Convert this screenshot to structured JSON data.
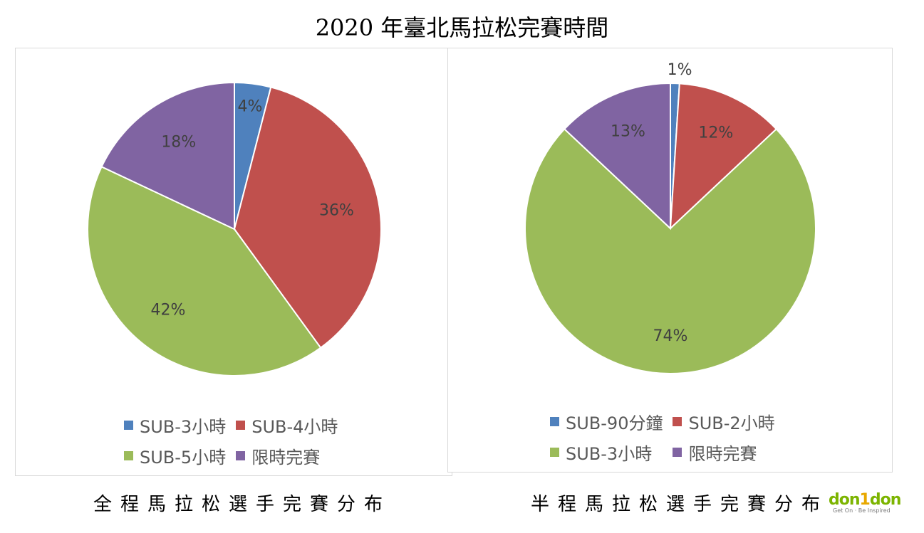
{
  "title": "2020 年臺北馬拉松完賽時間",
  "colors": {
    "blue": "#4f81bd",
    "red": "#c0504d",
    "green": "#9bbb59",
    "purple": "#8064a2"
  },
  "chart_data": [
    {
      "type": "pie",
      "caption": "全程馬拉松選手完賽分布",
      "categories": [
        "SUB-3小時",
        "SUB-4小時",
        "SUB-5小時",
        "限時完賽"
      ],
      "values": [
        4,
        36,
        42,
        18
      ],
      "labels": [
        "4%",
        "36%",
        "42%",
        "18%"
      ],
      "colors": [
        "#4f81bd",
        "#c0504d",
        "#9bbb59",
        "#8064a2"
      ],
      "legend_position": "bottom"
    },
    {
      "type": "pie",
      "caption": "半程馬拉松選手完賽分布",
      "categories": [
        "SUB-90分鐘",
        "SUB-2小時",
        "SUB-3小時",
        "限時完賽"
      ],
      "values": [
        1,
        12,
        74,
        13
      ],
      "labels": [
        "1%",
        "12%",
        "74%",
        "13%"
      ],
      "colors": [
        "#4f81bd",
        "#c0504d",
        "#9bbb59",
        "#8064a2"
      ],
      "legend_position": "bottom"
    }
  ],
  "logo": {
    "name": "don1don",
    "parts": [
      "don",
      "1",
      "don"
    ],
    "tagline": "Get On · Be Inspired"
  }
}
